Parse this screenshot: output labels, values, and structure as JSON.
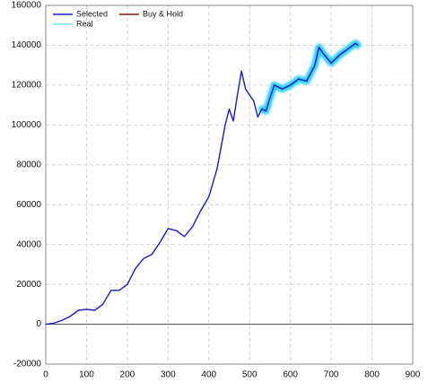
{
  "chart_data": {
    "type": "line",
    "x": [
      0,
      20,
      40,
      60,
      80,
      100,
      120,
      140,
      160,
      180,
      200,
      220,
      240,
      260,
      280,
      300,
      320,
      340,
      360,
      380,
      400,
      420,
      440,
      450,
      460,
      470,
      480,
      490,
      500,
      510,
      520,
      530,
      540,
      560,
      580,
      600,
      620,
      640,
      660,
      670,
      680,
      700,
      720,
      740,
      760,
      765
    ],
    "series": [
      {
        "name": "Selected",
        "color": "#1a1acc",
        "values": [
          0,
          500,
          2000,
          4000,
          7000,
          7500,
          7000,
          10000,
          17000,
          17000,
          20000,
          28000,
          33000,
          35000,
          41000,
          48000,
          47000,
          44000,
          49000,
          57000,
          64000,
          78000,
          100000,
          108000,
          102000,
          115000,
          127000,
          118000,
          115000,
          112000,
          104000,
          108000,
          107000,
          120000,
          118000,
          120000,
          123000,
          122000,
          130000,
          139000,
          136000,
          131000,
          135000,
          138000,
          141000,
          140000
        ]
      },
      {
        "name": "Buy & Hold",
        "color": "#a01010",
        "values": [
          null,
          null,
          null,
          null,
          null,
          null,
          null,
          null,
          null,
          null,
          null,
          null,
          null,
          null,
          null,
          null,
          null,
          null,
          null,
          null,
          null,
          null,
          null,
          null,
          null,
          null,
          null,
          null,
          null,
          null,
          null,
          null,
          null,
          null,
          null,
          null,
          null,
          null,
          null,
          null,
          null,
          null,
          null,
          null,
          null,
          null
        ]
      },
      {
        "name": "Real",
        "color": "#33d0f0",
        "values": [
          null,
          null,
          null,
          null,
          null,
          null,
          null,
          null,
          null,
          null,
          null,
          null,
          null,
          null,
          null,
          null,
          null,
          null,
          null,
          null,
          null,
          null,
          null,
          null,
          null,
          null,
          null,
          null,
          null,
          null,
          null,
          108000,
          107000,
          120000,
          118000,
          120000,
          123000,
          122000,
          130000,
          139000,
          136000,
          131000,
          135000,
          138000,
          141000,
          140000
        ]
      }
    ],
    "xlim": [
      0,
      900
    ],
    "xticks": [
      0,
      100,
      200,
      300,
      400,
      500,
      600,
      700,
      800,
      900
    ],
    "ylim": [
      -20000,
      160000
    ],
    "yticks": [
      -20000,
      0,
      20000,
      40000,
      60000,
      80000,
      100000,
      120000,
      140000,
      160000
    ],
    "grid": true,
    "legend": "top-left"
  }
}
